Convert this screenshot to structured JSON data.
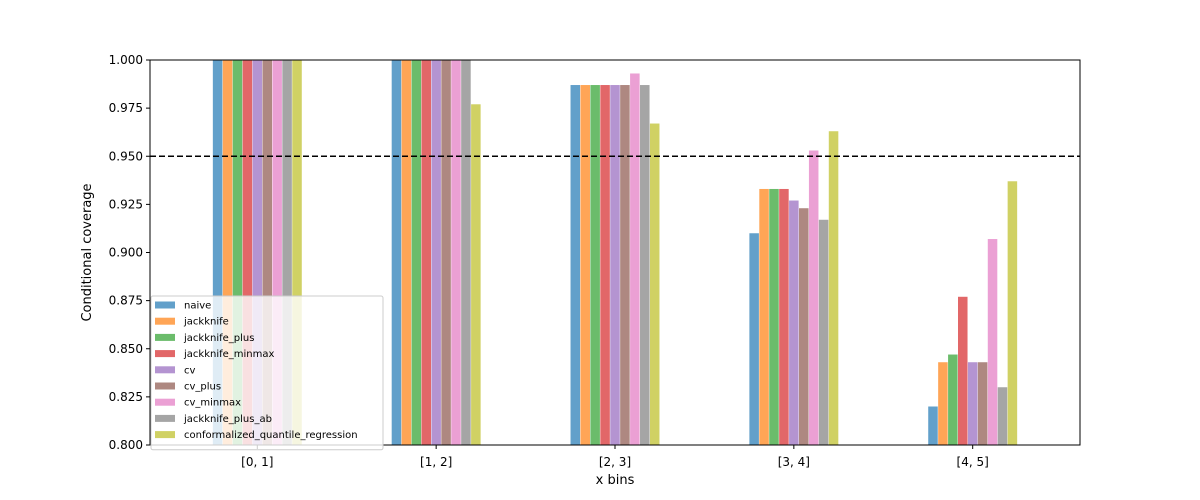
{
  "chart_data": {
    "type": "bar",
    "title": "",
    "xlabel": "x bins",
    "ylabel": "Conditional coverage",
    "ylim": [
      0.8,
      1.0
    ],
    "yticks": [
      "0.800",
      "0.825",
      "0.850",
      "0.875",
      "0.900",
      "0.925",
      "0.950",
      "0.975",
      "1.000"
    ],
    "reference_line": {
      "y": 0.95,
      "style": "dashed",
      "color": "#000000"
    },
    "grid": false,
    "legend_position": "lower-left",
    "categories": [
      "[0, 1]",
      "[1, 2]",
      "[2, 3]",
      "[3, 4]",
      "[4, 5]"
    ],
    "series": [
      {
        "name": "naive",
        "color": "#1f77b4",
        "values": [
          1.0,
          1.0,
          0.987,
          0.91,
          0.82
        ]
      },
      {
        "name": "jackknife",
        "color": "#ff7f0e",
        "values": [
          1.0,
          1.0,
          0.987,
          0.933,
          0.843
        ]
      },
      {
        "name": "jackknife_plus",
        "color": "#2ca02c",
        "values": [
          1.0,
          1.0,
          0.987,
          0.933,
          0.847
        ]
      },
      {
        "name": "jackknife_minmax",
        "color": "#d62728",
        "values": [
          1.0,
          1.0,
          0.987,
          0.933,
          0.877
        ]
      },
      {
        "name": "cv",
        "color": "#9467bd",
        "values": [
          1.0,
          1.0,
          0.987,
          0.927,
          0.843
        ]
      },
      {
        "name": "cv_plus",
        "color": "#8c564b",
        "values": [
          1.0,
          1.0,
          0.987,
          0.923,
          0.843
        ]
      },
      {
        "name": "cv_minmax",
        "color": "#e377c2",
        "values": [
          1.0,
          1.0,
          0.993,
          0.953,
          0.907
        ]
      },
      {
        "name": "jackknife_plus_ab",
        "color": "#7f7f7f",
        "values": [
          1.0,
          1.0,
          0.987,
          0.917,
          0.83
        ]
      },
      {
        "name": "conformalized_quantile_regression",
        "color": "#bcbd22",
        "values": [
          1.0,
          0.977,
          0.967,
          0.963,
          0.937
        ]
      }
    ]
  }
}
